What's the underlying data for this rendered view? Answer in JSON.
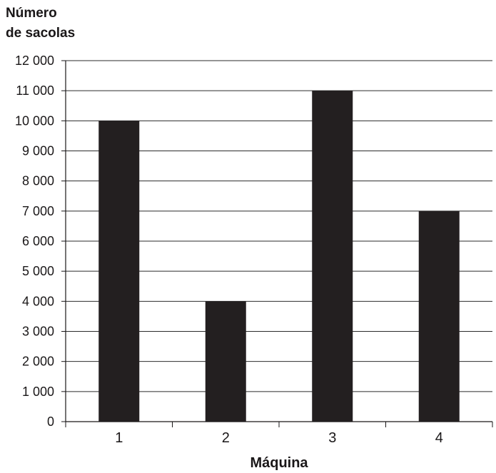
{
  "chart_data": {
    "type": "bar",
    "ylabel_lines": [
      "Número",
      "de sacolas"
    ],
    "xlabel": "Máquina",
    "categories": [
      "1",
      "2",
      "3",
      "4"
    ],
    "values": [
      10000,
      4000,
      11000,
      7000
    ],
    "ylim": [
      0,
      12000
    ],
    "yticks": [
      0,
      1000,
      2000,
      3000,
      4000,
      5000,
      6000,
      7000,
      8000,
      9000,
      10000,
      11000,
      12000
    ],
    "ytick_labels": [
      "0",
      "1 000",
      "2 000",
      "3 000",
      "4 000",
      "5 000",
      "6 000",
      "7 000",
      "8 000",
      "9 000",
      "10 000",
      "11 000",
      "12 000"
    ],
    "grid": true,
    "bar_color": "#231f20"
  }
}
